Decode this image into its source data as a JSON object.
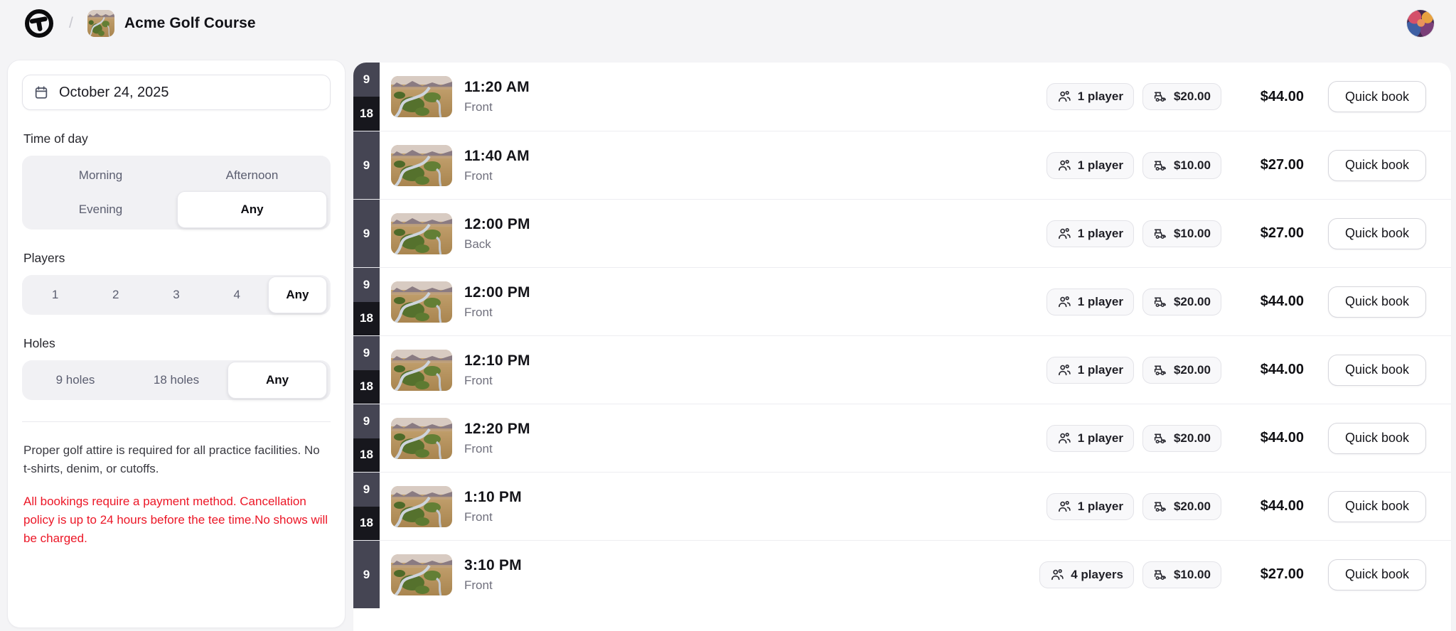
{
  "header": {
    "breadcrumb_separator": "/",
    "course_name": "Acme Golf Course"
  },
  "sidebar": {
    "date": {
      "value": "October 24, 2025"
    },
    "time_of_day": {
      "label": "Time of day",
      "options": [
        "Morning",
        "Afternoon",
        "Evening",
        "Any"
      ],
      "selected": "Any"
    },
    "players": {
      "label": "Players",
      "options": [
        "1",
        "2",
        "3",
        "4",
        "Any"
      ],
      "selected": "Any"
    },
    "holes": {
      "label": "Holes",
      "options": [
        "9 holes",
        "18 holes",
        "Any"
      ],
      "selected": "Any"
    },
    "notes": {
      "attire": "Proper golf attire is required for all practice facilities. No t-shirts, denim, or cutoffs.",
      "policy": "All bookings require a payment method. Cancellation policy is up to 24 hours before the tee time.No shows will be charged."
    }
  },
  "list": {
    "quick_book_label": "Quick book"
  },
  "tee_times": [
    {
      "time": "11:20 AM",
      "side": "Front",
      "holes": [
        "9",
        "18"
      ],
      "players": "1 player",
      "cart_price": "$20.00",
      "total": "$44.00"
    },
    {
      "time": "11:40 AM",
      "side": "Front",
      "holes": [
        "9"
      ],
      "players": "1 player",
      "cart_price": "$10.00",
      "total": "$27.00"
    },
    {
      "time": "12:00 PM",
      "side": "Back",
      "holes": [
        "9"
      ],
      "players": "1 player",
      "cart_price": "$10.00",
      "total": "$27.00"
    },
    {
      "time": "12:00 PM",
      "side": "Front",
      "holes": [
        "9",
        "18"
      ],
      "players": "1 player",
      "cart_price": "$20.00",
      "total": "$44.00"
    },
    {
      "time": "12:10 PM",
      "side": "Front",
      "holes": [
        "9",
        "18"
      ],
      "players": "1 player",
      "cart_price": "$20.00",
      "total": "$44.00"
    },
    {
      "time": "12:20 PM",
      "side": "Front",
      "holes": [
        "9",
        "18"
      ],
      "players": "1 player",
      "cart_price": "$20.00",
      "total": "$44.00"
    },
    {
      "time": "1:10 PM",
      "side": "Front",
      "holes": [
        "9",
        "18"
      ],
      "players": "1 player",
      "cart_price": "$20.00",
      "total": "$44.00"
    },
    {
      "time": "3:10 PM",
      "side": "Front",
      "holes": [
        "9"
      ],
      "players": "4 players",
      "cart_price": "$10.00",
      "total": "$27.00"
    }
  ],
  "icons": {
    "logo": "brand-logo",
    "calendar": "calendar-icon",
    "players_chip": "users-icon",
    "price_chip": "golf-cart-icon",
    "avatar": "user-avatar"
  },
  "colors": {
    "page_bg": "#f4f4f6",
    "badge_9_bg": "#454553",
    "badge_18_bg": "#17171d",
    "policy_red": "#ec1626",
    "chip_bg": "#f8f8fa"
  }
}
